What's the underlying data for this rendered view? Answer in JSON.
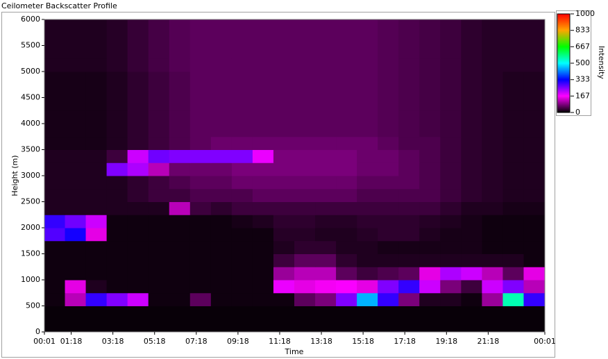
{
  "chart_data": {
    "type": "heatmap",
    "title": "Ceilometer Backscatter Profile",
    "x_label": "Time",
    "y_label": "Height (m)",
    "colorbar_label": "Intensity",
    "xlim": [
      0.0167,
      24.0167
    ],
    "xticks": [
      {
        "value": 0.0167,
        "label": "00:01"
      },
      {
        "value": 1.3,
        "label": "01:18"
      },
      {
        "value": 3.3,
        "label": "03:18"
      },
      {
        "value": 5.3,
        "label": "05:18"
      },
      {
        "value": 7.3,
        "label": "07:18"
      },
      {
        "value": 9.3,
        "label": "09:18"
      },
      {
        "value": 11.3,
        "label": "11:18"
      },
      {
        "value": 13.3,
        "label": "13:18"
      },
      {
        "value": 15.3,
        "label": "15:18"
      },
      {
        "value": 17.3,
        "label": "17:18"
      },
      {
        "value": 19.3,
        "label": "19:18"
      },
      {
        "value": 21.3,
        "label": "21:18"
      },
      {
        "value": 24.0167,
        "label": "00:01"
      }
    ],
    "ylim": [
      0,
      6000
    ],
    "yticks": [
      0,
      500,
      1000,
      1500,
      2000,
      2500,
      3000,
      3500,
      4000,
      4500,
      5000,
      5500,
      6000
    ],
    "zlim": [
      0,
      1000
    ],
    "zticks": [
      0,
      167,
      333,
      500,
      667,
      833,
      1000
    ],
    "colors": [
      "#000000",
      "#ff00ff",
      "#0000ff",
      "#00ffff",
      "#00ff00",
      "#ffa500",
      "#ff0000"
    ],
    "x": [
      0,
      1,
      2,
      3,
      4,
      5,
      6,
      7,
      8,
      9,
      10,
      11,
      12,
      13,
      14,
      15,
      16,
      17,
      18,
      19,
      20,
      21,
      22,
      23
    ],
    "y": [
      0,
      250,
      500,
      750,
      1000,
      1250,
      1500,
      1750,
      2000,
      2250,
      2500,
      2750,
      3000,
      3250,
      3500,
      3750,
      4000,
      4250,
      4500,
      4750,
      5000,
      5250,
      5500,
      5750
    ],
    "z": [
      [
        5,
        5,
        5,
        5,
        5,
        5,
        5,
        5,
        5,
        5,
        5,
        5,
        5,
        5,
        5,
        5,
        5,
        5,
        5,
        5,
        5,
        5,
        5,
        5
      ],
      [
        5,
        5,
        5,
        5,
        5,
        5,
        5,
        5,
        5,
        5,
        5,
        5,
        5,
        5,
        5,
        5,
        5,
        5,
        5,
        5,
        5,
        5,
        5,
        5
      ],
      [
        10,
        120,
        300,
        250,
        200,
        10,
        10,
        60,
        10,
        10,
        10,
        10,
        60,
        80,
        250,
        450,
        300,
        80,
        20,
        20,
        10,
        100,
        550,
        300
      ],
      [
        10,
        150,
        20,
        10,
        10,
        10,
        10,
        10,
        10,
        10,
        10,
        180,
        150,
        160,
        170,
        150,
        250,
        300,
        200,
        80,
        40,
        200,
        250,
        120
      ],
      [
        10,
        10,
        10,
        10,
        10,
        10,
        10,
        10,
        10,
        10,
        10,
        100,
        120,
        120,
        60,
        40,
        50,
        60,
        150,
        220,
        200,
        120,
        60,
        150
      ],
      [
        10,
        10,
        10,
        10,
        10,
        10,
        10,
        10,
        10,
        10,
        10,
        40,
        60,
        60,
        30,
        20,
        20,
        20,
        20,
        20,
        20,
        20,
        20,
        10
      ],
      [
        10,
        10,
        10,
        10,
        10,
        10,
        10,
        10,
        10,
        10,
        10,
        20,
        30,
        30,
        20,
        20,
        15,
        15,
        15,
        15,
        15,
        10,
        10,
        10
      ],
      [
        280,
        320,
        150,
        10,
        10,
        10,
        10,
        10,
        10,
        10,
        10,
        25,
        25,
        20,
        20,
        25,
        30,
        30,
        20,
        15,
        15,
        10,
        10,
        10
      ],
      [
        300,
        260,
        200,
        10,
        10,
        10,
        10,
        10,
        10,
        15,
        20,
        30,
        30,
        25,
        25,
        30,
        30,
        30,
        25,
        20,
        15,
        10,
        10,
        10
      ],
      [
        20,
        20,
        20,
        20,
        20,
        20,
        120,
        40,
        30,
        40,
        40,
        40,
        40,
        40,
        40,
        40,
        40,
        40,
        40,
        30,
        20,
        20,
        15,
        15
      ],
      [
        20,
        20,
        20,
        20,
        30,
        40,
        40,
        50,
        50,
        50,
        60,
        60,
        60,
        60,
        60,
        50,
        50,
        50,
        50,
        40,
        30,
        25,
        20,
        20
      ],
      [
        20,
        20,
        20,
        20,
        30,
        40,
        50,
        60,
        60,
        70,
        70,
        70,
        70,
        70,
        70,
        60,
        60,
        60,
        50,
        40,
        30,
        25,
        20,
        20
      ],
      [
        20,
        20,
        20,
        250,
        220,
        120,
        70,
        70,
        70,
        80,
        80,
        80,
        80,
        80,
        80,
        70,
        70,
        60,
        50,
        40,
        30,
        25,
        20,
        20
      ],
      [
        20,
        20,
        20,
        40,
        200,
        260,
        250,
        250,
        250,
        250,
        180,
        80,
        80,
        80,
        80,
        70,
        70,
        60,
        50,
        40,
        30,
        25,
        20,
        20
      ],
      [
        15,
        15,
        15,
        20,
        30,
        40,
        50,
        60,
        70,
        70,
        70,
        70,
        70,
        70,
        70,
        70,
        60,
        50,
        50,
        40,
        30,
        25,
        20,
        20
      ],
      [
        15,
        15,
        15,
        20,
        30,
        40,
        50,
        60,
        60,
        60,
        60,
        60,
        60,
        60,
        60,
        60,
        55,
        50,
        45,
        40,
        30,
        25,
        20,
        20
      ],
      [
        15,
        15,
        15,
        20,
        30,
        40,
        50,
        60,
        60,
        60,
        60,
        60,
        60,
        60,
        60,
        60,
        55,
        50,
        45,
        40,
        30,
        25,
        20,
        20
      ],
      [
        15,
        15,
        15,
        20,
        30,
        40,
        50,
        60,
        60,
        60,
        60,
        60,
        60,
        60,
        60,
        60,
        55,
        50,
        45,
        40,
        30,
        25,
        20,
        20
      ],
      [
        15,
        15,
        15,
        20,
        30,
        40,
        50,
        60,
        60,
        60,
        60,
        60,
        60,
        60,
        60,
        60,
        55,
        50,
        45,
        40,
        30,
        25,
        20,
        20
      ],
      [
        15,
        15,
        15,
        20,
        30,
        40,
        50,
        60,
        60,
        60,
        60,
        60,
        60,
        60,
        60,
        60,
        55,
        50,
        45,
        40,
        30,
        25,
        20,
        20
      ],
      [
        20,
        20,
        20,
        25,
        35,
        45,
        55,
        60,
        60,
        60,
        60,
        60,
        60,
        60,
        60,
        60,
        55,
        50,
        45,
        40,
        30,
        25,
        25,
        25
      ],
      [
        20,
        20,
        20,
        25,
        35,
        45,
        55,
        60,
        60,
        60,
        60,
        60,
        60,
        60,
        60,
        60,
        55,
        50,
        45,
        40,
        30,
        25,
        25,
        25
      ],
      [
        20,
        20,
        20,
        25,
        35,
        45,
        55,
        60,
        60,
        60,
        60,
        60,
        60,
        60,
        60,
        60,
        55,
        50,
        45,
        40,
        30,
        25,
        25,
        25
      ],
      [
        20,
        20,
        20,
        25,
        35,
        45,
        55,
        60,
        60,
        60,
        60,
        60,
        60,
        60,
        60,
        60,
        55,
        50,
        45,
        40,
        30,
        25,
        25,
        25
      ]
    ]
  }
}
